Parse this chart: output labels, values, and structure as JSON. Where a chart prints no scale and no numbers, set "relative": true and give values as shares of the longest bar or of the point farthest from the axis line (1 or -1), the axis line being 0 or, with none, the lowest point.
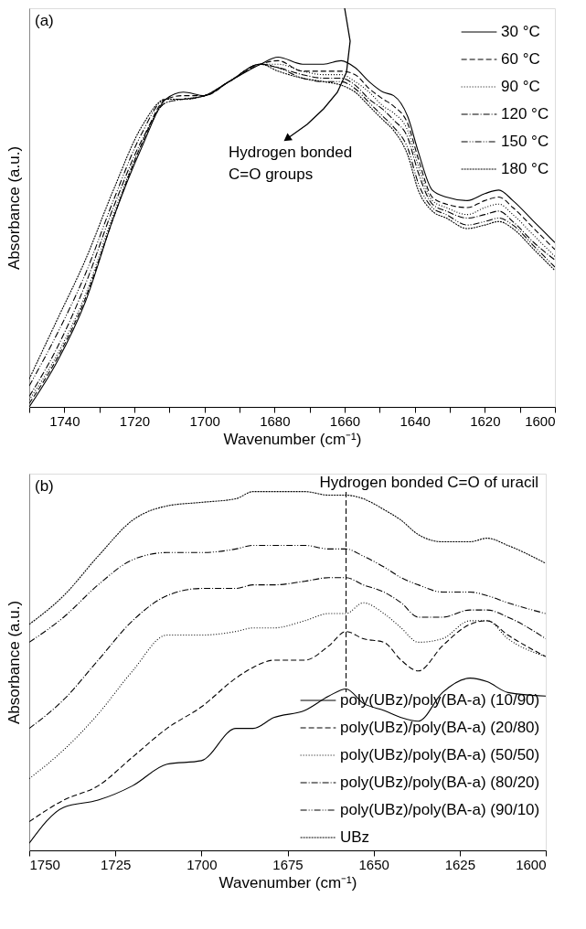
{
  "chart_data": [
    {
      "type": "line",
      "title": "(a)",
      "xlabel": "Wavenumber (cm⁻¹)",
      "ylabel": "Absorbance (a.u.)",
      "relative": true,
      "legend": "top right",
      "xlim": [
        1750,
        1600
      ],
      "xticks": [
        {
          "value": 1750,
          "label": null
        },
        1740,
        {
          "value": 1730,
          "label": null
        },
        1720,
        {
          "value": 1710,
          "label": null
        },
        1700,
        {
          "value": 1690,
          "label": null
        },
        1680,
        {
          "value": 1670,
          "label": null
        },
        1660,
        {
          "value": 1650,
          "label": null
        },
        1640,
        {
          "value": 1630,
          "label": null
        },
        1620,
        {
          "value": 1610,
          "label": null
        },
        1600
      ],
      "annotations": [
        "Hydrogen bonded\nC=O groups"
      ],
      "x": [
        1750,
        1742,
        1734,
        1726,
        1718,
        1711,
        1706,
        1700,
        1693,
        1684,
        1679,
        1672,
        1666,
        1661,
        1657,
        1653,
        1649,
        1646,
        1642,
        1639,
        1635,
        1631,
        1625,
        1620,
        1616,
        1612,
        1606,
        1600
      ],
      "series": [
        {
          "name": "30 °C",
          "color": "#000000",
          "line_style": "solid",
          "values": [
            0,
            0.13,
            0.3,
            0.54,
            0.74,
            0.88,
            0.9,
            0.89,
            0.93,
            0.98,
            1.0,
            0.98,
            0.98,
            0.99,
            0.97,
            0.93,
            0.9,
            0.89,
            0.83,
            0.73,
            0.62,
            0.6,
            0.59,
            0.61,
            0.62,
            0.59,
            0.53,
            0.47
          ]
        },
        {
          "name": "60 °C",
          "color": "#000000",
          "line_style": "dashed",
          "values": [
            0.01,
            0.14,
            0.31,
            0.54,
            0.75,
            0.88,
            0.89,
            0.89,
            0.93,
            0.98,
            0.99,
            0.96,
            0.96,
            0.96,
            0.95,
            0.91,
            0.88,
            0.86,
            0.81,
            0.71,
            0.6,
            0.58,
            0.57,
            0.59,
            0.6,
            0.57,
            0.51,
            0.45
          ]
        },
        {
          "name": "90 °C",
          "color": "#000000",
          "line_style": "dotted",
          "values": [
            0.02,
            0.15,
            0.32,
            0.55,
            0.75,
            0.87,
            0.88,
            0.89,
            0.93,
            0.98,
            0.98,
            0.96,
            0.95,
            0.95,
            0.93,
            0.9,
            0.86,
            0.84,
            0.79,
            0.69,
            0.59,
            0.57,
            0.55,
            0.57,
            0.58,
            0.55,
            0.49,
            0.43
          ]
        },
        {
          "name": "120 °C",
          "color": "#000000",
          "line_style": "dashdot",
          "values": [
            0.03,
            0.17,
            0.35,
            0.57,
            0.76,
            0.87,
            0.88,
            0.89,
            0.93,
            0.98,
            0.97,
            0.95,
            0.94,
            0.94,
            0.92,
            0.88,
            0.85,
            0.82,
            0.77,
            0.67,
            0.58,
            0.56,
            0.54,
            0.55,
            0.56,
            0.53,
            0.47,
            0.42
          ]
        },
        {
          "name": "150 °C",
          "color": "#000000",
          "line_style": "dashdotdot",
          "values": [
            0.06,
            0.21,
            0.38,
            0.59,
            0.78,
            0.88,
            0.88,
            0.89,
            0.93,
            0.98,
            0.97,
            0.94,
            0.93,
            0.93,
            0.91,
            0.87,
            0.83,
            0.8,
            0.74,
            0.64,
            0.57,
            0.55,
            0.52,
            0.53,
            0.54,
            0.52,
            0.46,
            0.4
          ]
        },
        {
          "name": "180 °C",
          "color": "#000000",
          "line_style": "shortdash",
          "values": [
            0.08,
            0.25,
            0.42,
            0.62,
            0.8,
            0.88,
            0.88,
            0.89,
            0.93,
            0.98,
            0.96,
            0.94,
            0.93,
            0.92,
            0.9,
            0.86,
            0.82,
            0.79,
            0.72,
            0.62,
            0.56,
            0.54,
            0.51,
            0.52,
            0.53,
            0.51,
            0.45,
            0.39
          ]
        }
      ]
    },
    {
      "type": "line",
      "title": "(b)",
      "xlabel": "Wavenumber (cm⁻¹)",
      "ylabel": "Absorbance (a.u.)",
      "relative": true,
      "legend": "bottom right",
      "xlim": [
        1750,
        1600
      ],
      "xticks": [
        1750,
        1725,
        1700,
        1675,
        1650,
        1625,
        1600
      ],
      "ref_lines": [
        {
          "axis": "x",
          "value": 1658,
          "label": "Hydrogen bonded C=O of uracil",
          "line_style": "dashed",
          "color": "#000000"
        }
      ],
      "x": [
        1750,
        1740,
        1730,
        1720,
        1710,
        1700,
        1690,
        1685,
        1679,
        1670,
        1663,
        1658,
        1653,
        1647,
        1642,
        1637,
        1630,
        1622,
        1617,
        1611,
        1600
      ],
      "series": [
        {
          "name": "poly(UBz)/poly(BA-a) (10/90)",
          "color": "#000000",
          "line_style": "solid",
          "values": [
            0.02,
            0.12,
            0.14,
            0.18,
            0.24,
            0.25,
            0.34,
            0.34,
            0.37,
            0.39,
            0.43,
            0.45,
            0.41,
            0.39,
            0.37,
            0.36,
            0.44,
            0.48,
            0.47,
            0.44,
            0.43
          ]
        },
        {
          "name": "poly(UBz)/poly(BA-a) (20/80)",
          "color": "#000000",
          "line_style": "dashed",
          "values": [
            0.08,
            0.14,
            0.18,
            0.26,
            0.34,
            0.4,
            0.48,
            0.51,
            0.53,
            0.53,
            0.57,
            0.61,
            0.59,
            0.58,
            0.53,
            0.5,
            0.57,
            0.63,
            0.64,
            0.6,
            0.54
          ]
        },
        {
          "name": "poly(UBz)/poly(BA-a) (50/50)",
          "color": "#000000",
          "line_style": "dotted",
          "values": [
            0.2,
            0.28,
            0.38,
            0.5,
            0.6,
            0.6,
            0.61,
            0.62,
            0.62,
            0.64,
            0.66,
            0.66,
            0.69,
            0.66,
            0.62,
            0.58,
            0.59,
            0.64,
            0.64,
            0.59,
            0.54
          ]
        },
        {
          "name": "poly(UBz)/poly(BA-a) (80/20)",
          "color": "#000000",
          "line_style": "dashdot",
          "values": [
            0.34,
            0.42,
            0.53,
            0.64,
            0.71,
            0.73,
            0.73,
            0.74,
            0.74,
            0.75,
            0.76,
            0.76,
            0.74,
            0.72,
            0.69,
            0.65,
            0.65,
            0.67,
            0.67,
            0.65,
            0.59
          ]
        },
        {
          "name": "poly(UBz)/poly(BA-a) (90/10)",
          "color": "#000000",
          "line_style": "dashdotdot",
          "values": [
            0.58,
            0.65,
            0.74,
            0.81,
            0.83,
            0.83,
            0.84,
            0.85,
            0.85,
            0.85,
            0.84,
            0.84,
            0.82,
            0.79,
            0.76,
            0.74,
            0.72,
            0.72,
            0.71,
            0.69,
            0.66
          ]
        },
        {
          "name": "UBz",
          "color": "#000000",
          "line_style": "shortdash",
          "values": [
            0.63,
            0.71,
            0.82,
            0.92,
            0.96,
            0.97,
            0.98,
            1.0,
            1.0,
            1.0,
            0.99,
            0.99,
            0.98,
            0.95,
            0.92,
            0.88,
            0.86,
            0.86,
            0.87,
            0.85,
            0.8
          ]
        }
      ]
    }
  ]
}
